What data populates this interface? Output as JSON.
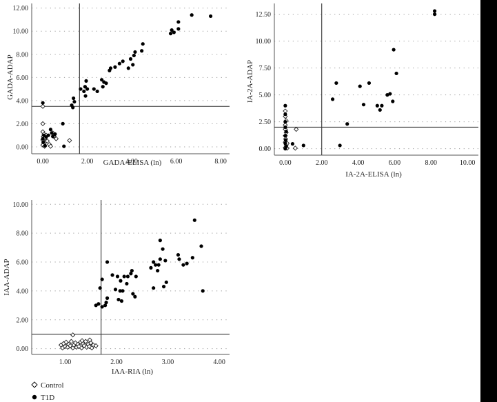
{
  "chart_data": [
    {
      "type": "scatter",
      "id": "gada",
      "title": "",
      "xlabel": "GADA-ELISA (ln)",
      "ylabel": "GADA-ADAP",
      "xlim": [
        -0.5,
        8.4
      ],
      "ylim": [
        -0.6,
        12.4
      ],
      "xticks": [
        0,
        2,
        4,
        6,
        8
      ],
      "xtick_labels": [
        "0.00",
        "2.00",
        "4.00",
        "6.00",
        "8.00"
      ],
      "yticks": [
        0,
        2,
        4,
        6,
        8,
        10,
        12
      ],
      "ytick_labels": [
        "0.00",
        "2.00",
        "4.00",
        "6.00",
        "8.00",
        "10.00",
        "12.00"
      ],
      "threshold_x": 1.65,
      "threshold_y": 3.5,
      "series": [
        {
          "name": "Control",
          "marker": "diamond-open",
          "points": [
            [
              0,
              3.5
            ],
            [
              0,
              2.0
            ],
            [
              0,
              1.3
            ],
            [
              0.05,
              1.1
            ],
            [
              0.02,
              0.9
            ],
            [
              0.1,
              0.75
            ],
            [
              0,
              0.6
            ],
            [
              0.12,
              0.45
            ],
            [
              0.05,
              0.3
            ],
            [
              0,
              0.15
            ],
            [
              0.08,
              0.05
            ],
            [
              0.2,
              0.5
            ],
            [
              0.3,
              0.2
            ],
            [
              0.35,
              0.05
            ],
            [
              0.45,
              1.2
            ],
            [
              0.5,
              0.9
            ],
            [
              0.6,
              0.7
            ],
            [
              1.2,
              0.55
            ],
            [
              0.15,
              1.0
            ]
          ]
        },
        {
          "name": "T1D",
          "marker": "circle-filled",
          "points": [
            [
              0,
              3.8
            ],
            [
              0.05,
              1.0
            ],
            [
              0,
              0.7
            ],
            [
              0.02,
              0.4
            ],
            [
              0.1,
              0.1
            ],
            [
              0.15,
              0.85
            ],
            [
              0.25,
              1.0
            ],
            [
              0.35,
              1.5
            ],
            [
              0.4,
              1.2
            ],
            [
              0.45,
              0.9
            ],
            [
              0.55,
              1.1
            ],
            [
              0.9,
              2.0
            ],
            [
              0.95,
              0.05
            ],
            [
              1.3,
              3.6
            ],
            [
              1.35,
              3.4
            ],
            [
              1.38,
              4.2
            ],
            [
              1.42,
              3.9
            ],
            [
              1.7,
              5.0
            ],
            [
              1.85,
              4.8
            ],
            [
              1.9,
              5.2
            ],
            [
              1.92,
              4.4
            ],
            [
              1.95,
              5.7
            ],
            [
              2.0,
              5.0
            ],
            [
              2.3,
              5.0
            ],
            [
              2.45,
              4.8
            ],
            [
              2.65,
              5.8
            ],
            [
              2.7,
              5.2
            ],
            [
              2.75,
              5.6
            ],
            [
              2.85,
              5.5
            ],
            [
              3.0,
              6.6
            ],
            [
              3.05,
              6.8
            ],
            [
              3.25,
              6.9
            ],
            [
              3.45,
              7.2
            ],
            [
              3.6,
              7.4
            ],
            [
              3.85,
              6.8
            ],
            [
              3.95,
              7.6
            ],
            [
              4.05,
              7.1
            ],
            [
              4.1,
              7.9
            ],
            [
              4.15,
              8.2
            ],
            [
              4.45,
              8.3
            ],
            [
              4.5,
              8.9
            ],
            [
              5.75,
              9.8
            ],
            [
              5.8,
              10.1
            ],
            [
              5.9,
              9.9
            ],
            [
              6.1,
              10.2
            ],
            [
              6.1,
              10.8
            ],
            [
              6.7,
              11.4
            ],
            [
              7.55,
              11.3
            ]
          ]
        }
      ]
    },
    {
      "type": "scatter",
      "id": "ia2a",
      "title": "",
      "xlabel": "IA-2A-ELISA (ln)",
      "ylabel": "IA-2A-ADAP",
      "xlim": [
        -0.6,
        10.6
      ],
      "ylim": [
        -0.6,
        13.5
      ],
      "xticks": [
        0,
        2,
        4,
        6,
        8,
        10
      ],
      "xtick_labels": [
        "0.00",
        "2.00",
        "4.00",
        "6.00",
        "8.00",
        "10.00"
      ],
      "yticks": [
        0,
        2.5,
        5,
        7.5,
        10,
        12.5
      ],
      "ytick_labels": [
        "0.00",
        "2.50",
        "5.00",
        "7.50",
        "10.00",
        "12.50"
      ],
      "threshold_x": 2.0,
      "threshold_y": 2.0,
      "series": [
        {
          "name": "Control",
          "marker": "diamond-open",
          "points": [
            [
              0,
              3.5
            ],
            [
              0,
              3.0
            ],
            [
              0.05,
              2.6
            ],
            [
              0,
              2.2
            ],
            [
              0,
              1.8
            ],
            [
              0.05,
              1.5
            ],
            [
              0,
              1.2
            ],
            [
              0.02,
              0.9
            ],
            [
              0,
              0.6
            ],
            [
              0.05,
              0.35
            ],
            [
              0,
              0.1
            ],
            [
              0.1,
              0.05
            ],
            [
              0.6,
              1.8
            ],
            [
              0.55,
              0.05
            ],
            [
              0.1,
              0.5
            ]
          ]
        },
        {
          "name": "T1D",
          "marker": "circle-filled",
          "points": [
            [
              0,
              4.0
            ],
            [
              0,
              3.2
            ],
            [
              0,
              2.5
            ],
            [
              0,
              2.0
            ],
            [
              0.05,
              1.6
            ],
            [
              0,
              1.2
            ],
            [
              0.02,
              0.8
            ],
            [
              0,
              0.5
            ],
            [
              0.05,
              0.2
            ],
            [
              0,
              0.0
            ],
            [
              0.4,
              0.45
            ],
            [
              1.0,
              0.3
            ],
            [
              2.6,
              4.6
            ],
            [
              2.8,
              6.1
            ],
            [
              3.0,
              0.3
            ],
            [
              3.4,
              2.3
            ],
            [
              4.1,
              5.8
            ],
            [
              4.3,
              4.1
            ],
            [
              4.6,
              6.1
            ],
            [
              5.05,
              4.0
            ],
            [
              5.2,
              3.6
            ],
            [
              5.3,
              4.0
            ],
            [
              5.6,
              5.0
            ],
            [
              5.75,
              5.1
            ],
            [
              5.9,
              4.4
            ],
            [
              5.95,
              9.2
            ],
            [
              6.1,
              7.0
            ],
            [
              8.2,
              12.8
            ],
            [
              8.2,
              12.5
            ]
          ]
        }
      ]
    },
    {
      "type": "scatter",
      "id": "iaa",
      "title": "",
      "xlabel": "IAA-RIA (ln)",
      "ylabel": "IAA-ADAP",
      "xlim": [
        0.35,
        4.2
      ],
      "ylim": [
        -0.4,
        10.3
      ],
      "xticks": [
        1,
        2,
        3,
        4
      ],
      "xtick_labels": [
        "1.00",
        "2.00",
        "3.00",
        "4.00"
      ],
      "yticks": [
        0,
        2,
        4,
        6,
        8,
        10
      ],
      "ytick_labels": [
        "0.00",
        "2.00",
        "4.00",
        "6.00",
        "8.00",
        "10.00"
      ],
      "threshold_x": 1.7,
      "threshold_y": 1.0,
      "series": [
        {
          "name": "Control",
          "marker": "diamond-open",
          "points": [
            [
              0.92,
              0.25
            ],
            [
              0.95,
              0.05
            ],
            [
              0.97,
              0.35
            ],
            [
              1.0,
              0.15
            ],
            [
              1.02,
              0.45
            ],
            [
              1.05,
              0.1
            ],
            [
              1.07,
              0.3
            ],
            [
              1.1,
              0.2
            ],
            [
              1.12,
              0.5
            ],
            [
              1.15,
              0.05
            ],
            [
              1.17,
              0.25
            ],
            [
              1.2,
              0.4
            ],
            [
              1.22,
              0.1
            ],
            [
              1.25,
              0.3
            ],
            [
              1.27,
              0.15
            ],
            [
              1.3,
              0.45
            ],
            [
              1.32,
              0.05
            ],
            [
              1.35,
              0.35
            ],
            [
              1.37,
              0.2
            ],
            [
              1.4,
              0.5
            ],
            [
              1.42,
              0.1
            ],
            [
              1.45,
              0.3
            ],
            [
              1.47,
              0.15
            ],
            [
              1.5,
              0.4
            ],
            [
              1.52,
              0.05
            ],
            [
              1.55,
              0.25
            ],
            [
              1.15,
              0.95
            ],
            [
              1.33,
              0.55
            ],
            [
              1.48,
              0.6
            ],
            [
              1.6,
              0.2
            ]
          ]
        },
        {
          "name": "T1D",
          "marker": "circle-filled",
          "points": [
            [
              1.6,
              3.0
            ],
            [
              1.65,
              3.1
            ],
            [
              1.68,
              4.2
            ],
            [
              1.72,
              4.8
            ],
            [
              1.72,
              2.9
            ],
            [
              1.78,
              3.0
            ],
            [
              1.8,
              3.2
            ],
            [
              1.82,
              3.5
            ],
            [
              1.82,
              6.0
            ],
            [
              1.92,
              5.1
            ],
            [
              1.98,
              4.1
            ],
            [
              2.02,
              5.0
            ],
            [
              2.04,
              3.4
            ],
            [
              2.07,
              4.0
            ],
            [
              2.08,
              4.7
            ],
            [
              2.1,
              3.3
            ],
            [
              2.12,
              4.0
            ],
            [
              2.15,
              5.0
            ],
            [
              2.2,
              4.5
            ],
            [
              2.22,
              5.0
            ],
            [
              2.28,
              5.2
            ],
            [
              2.3,
              5.4
            ],
            [
              2.32,
              3.8
            ],
            [
              2.36,
              3.6
            ],
            [
              2.38,
              5.0
            ],
            [
              2.67,
              5.6
            ],
            [
              2.72,
              4.2
            ],
            [
              2.72,
              6.0
            ],
            [
              2.76,
              5.8
            ],
            [
              2.8,
              5.4
            ],
            [
              2.82,
              5.8
            ],
            [
              2.85,
              7.5
            ],
            [
              2.85,
              6.2
            ],
            [
              2.9,
              6.9
            ],
            [
              2.92,
              4.3
            ],
            [
              2.95,
              6.1
            ],
            [
              2.97,
              4.6
            ],
            [
              3.2,
              6.5
            ],
            [
              3.22,
              6.2
            ],
            [
              3.3,
              5.8
            ],
            [
              3.37,
              5.9
            ],
            [
              3.48,
              6.3
            ],
            [
              3.52,
              8.9
            ],
            [
              3.65,
              7.1
            ],
            [
              3.68,
              4.0
            ]
          ]
        }
      ]
    }
  ],
  "legend": {
    "items": [
      {
        "label": "Control",
        "marker": "diamond-open"
      },
      {
        "label": "T1D",
        "marker": "circle-filled"
      }
    ]
  }
}
